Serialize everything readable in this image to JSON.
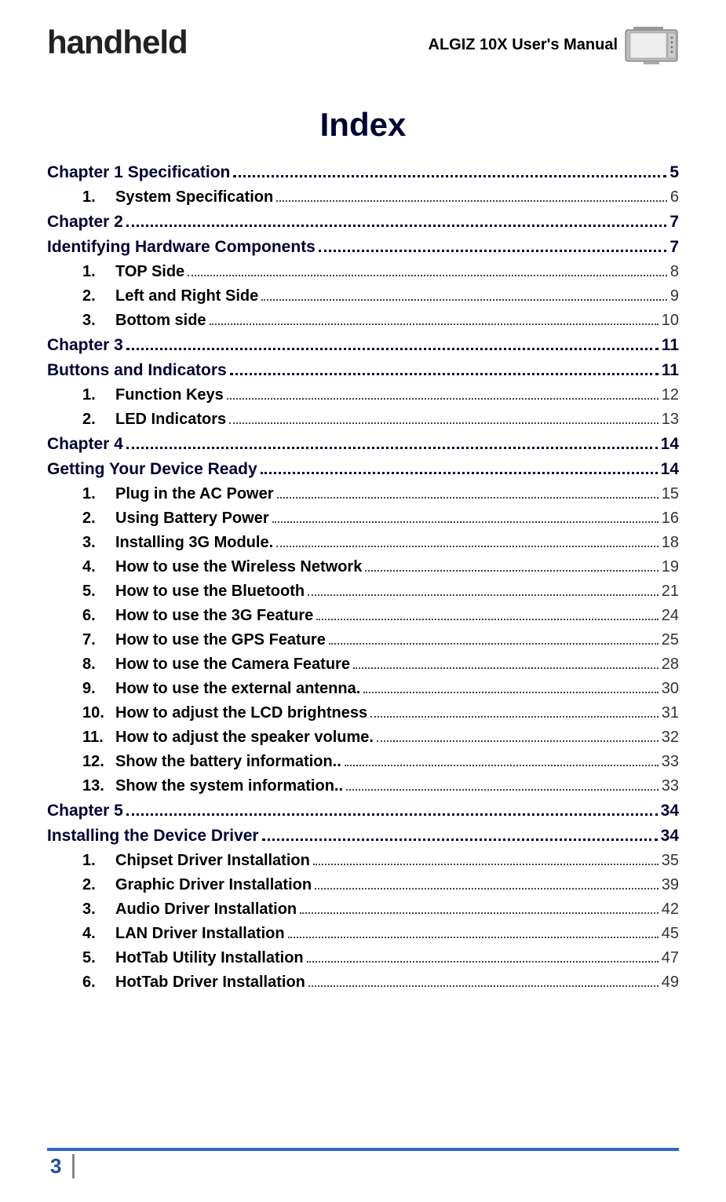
{
  "header": {
    "logo": "handheld",
    "title": "ALGIZ 10X User's Manual"
  },
  "index_title": "Index",
  "toc": [
    {
      "type": "chapter",
      "label": "Chapter 1 Specification",
      "page": "5"
    },
    {
      "type": "item",
      "num": "1.",
      "label": "System Specification",
      "page": "6"
    },
    {
      "type": "chapter",
      "label": "Chapter 2",
      "page": "7"
    },
    {
      "type": "chapter",
      "label": "Identifying Hardware Components",
      "page": "7"
    },
    {
      "type": "item",
      "num": "1.",
      "label": "TOP Side",
      "page": "8"
    },
    {
      "type": "item",
      "num": "2.",
      "label": "Left and Right Side",
      "page": "9"
    },
    {
      "type": "item",
      "num": "3.",
      "label": "Bottom side",
      "page": "10"
    },
    {
      "type": "chapter",
      "label": "Chapter 3",
      "page": "11"
    },
    {
      "type": "chapter",
      "label": "Buttons and Indicators",
      "page": "11"
    },
    {
      "type": "item",
      "num": "1.",
      "label": "Function Keys",
      "page": "12"
    },
    {
      "type": "item",
      "num": "2.",
      "label": "LED Indicators",
      "page": "13"
    },
    {
      "type": "chapter",
      "label": "Chapter 4",
      "page": "14"
    },
    {
      "type": "chapter",
      "label": "Getting Your Device Ready",
      "page": "14"
    },
    {
      "type": "item",
      "num": "1.",
      "label": "Plug in the AC Power",
      "page": "15"
    },
    {
      "type": "item",
      "num": "2.",
      "label": "Using Battery Power",
      "page": "16"
    },
    {
      "type": "item",
      "num": "3.",
      "label": "Installing 3G Module.",
      "page": "18"
    },
    {
      "type": "item",
      "num": "4.",
      "label": "How to use the Wireless Network",
      "page": "19"
    },
    {
      "type": "item",
      "num": "5.",
      "label": "How to use the Bluetooth",
      "page": "21"
    },
    {
      "type": "item",
      "num": "6.",
      "label": "How to use the 3G Feature",
      "page": "24"
    },
    {
      "type": "item",
      "num": "7.",
      "label": "How to use the GPS Feature",
      "page": "25"
    },
    {
      "type": "item",
      "num": "8.",
      "label": "How to use the Camera Feature",
      "page": "28"
    },
    {
      "type": "item",
      "num": "9.",
      "label": "How to use the external antenna.",
      "page": "30"
    },
    {
      "type": "item",
      "num": "10.",
      "label": "How to adjust the LCD brightness",
      "page": "31"
    },
    {
      "type": "item",
      "num": "11.",
      "label": "How to adjust the speaker volume.",
      "page": "32"
    },
    {
      "type": "item",
      "num": "12.",
      "label": "Show the battery information..",
      "page": "33"
    },
    {
      "type": "item",
      "num": "13.",
      "label": "Show the system information..",
      "page": "33"
    },
    {
      "type": "chapter",
      "label": "Chapter 5",
      "page": "34"
    },
    {
      "type": "chapter",
      "label": "Installing the Device Driver",
      "page": "34"
    },
    {
      "type": "item",
      "num": "1.",
      "label": "Chipset Driver Installation",
      "page": "35"
    },
    {
      "type": "item",
      "num": "2.",
      "label": "Graphic Driver Installation",
      "page": "39"
    },
    {
      "type": "item",
      "num": "3.",
      "label": "Audio Driver Installation",
      "page": "42"
    },
    {
      "type": "item",
      "num": "4.",
      "label": "LAN Driver Installation",
      "page": "45"
    },
    {
      "type": "item",
      "num": "5.",
      "label": "HotTab Utility Installation",
      "page": "47"
    },
    {
      "type": "item",
      "num": "6.",
      "label": "HotTab Driver Installation",
      "page": "49"
    }
  ],
  "footer": {
    "page_number": "3"
  }
}
